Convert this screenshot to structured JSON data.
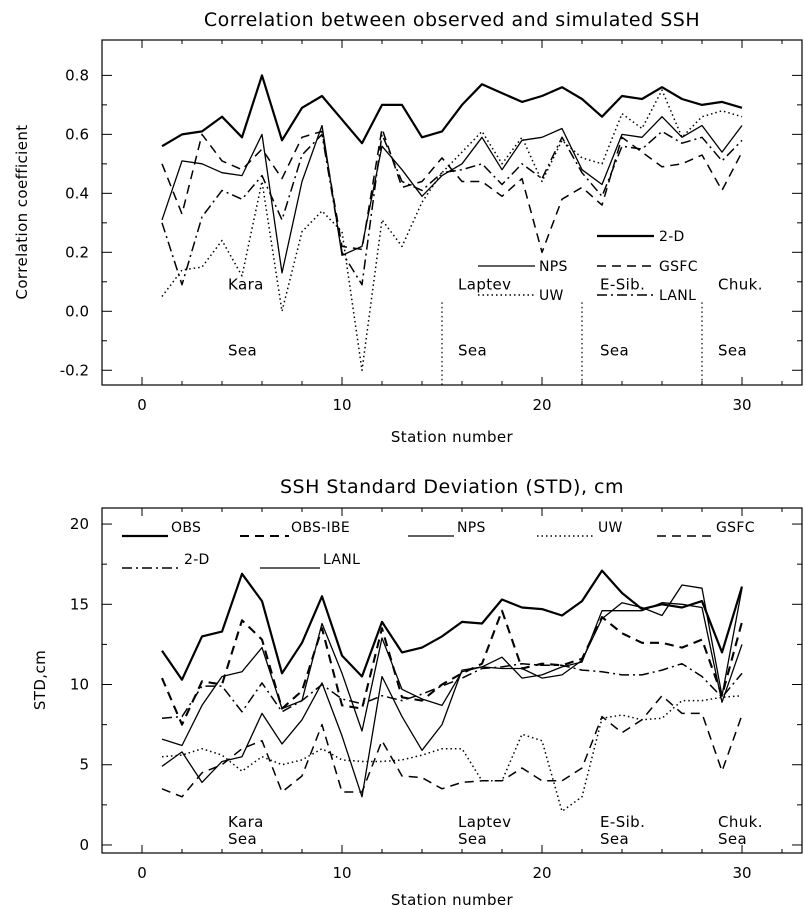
{
  "chart_data": [
    {
      "type": "line",
      "title": "Correlation between observed and simulated SSH",
      "xlabel": "Station number",
      "ylabel": "Correlation coefficient",
      "xlim": [
        -2,
        33
      ],
      "ylim": [
        -0.25,
        0.92
      ],
      "xticks": [
        0,
        10,
        20,
        30
      ],
      "xtick_labels": [
        "0",
        "10",
        "20",
        "30"
      ],
      "yticks": [
        -0.2,
        0.0,
        0.2,
        0.4,
        0.6,
        0.8
      ],
      "ytick_labels": [
        "-0.2",
        "0.0",
        "0.2",
        "0.4",
        "0.6",
        "0.8"
      ],
      "grid": false,
      "legend": "inside-right",
      "x": [
        1,
        2,
        3,
        4,
        5,
        6,
        7,
        8,
        9,
        10,
        11,
        12,
        13,
        14,
        15,
        16,
        17,
        18,
        19,
        20,
        21,
        22,
        23,
        24,
        25,
        26,
        27,
        28,
        29,
        30
      ],
      "series": [
        {
          "name": "2-D",
          "style": "solid-thick",
          "values": [
            0.56,
            0.6,
            0.61,
            0.66,
            0.59,
            0.8,
            0.58,
            0.69,
            0.73,
            0.65,
            0.57,
            0.7,
            0.7,
            0.59,
            0.61,
            0.7,
            0.77,
            0.74,
            0.71,
            0.73,
            0.76,
            0.72,
            0.66,
            0.73,
            0.72,
            0.76,
            0.72,
            0.7,
            0.71,
            0.69
          ]
        },
        {
          "name": "NPS",
          "style": "solid",
          "values": [
            0.31,
            0.51,
            0.5,
            0.47,
            0.46,
            0.6,
            0.13,
            0.44,
            0.63,
            0.19,
            0.22,
            0.56,
            0.48,
            0.39,
            0.46,
            0.5,
            0.59,
            0.48,
            0.58,
            0.59,
            0.62,
            0.48,
            0.43,
            0.6,
            0.59,
            0.66,
            0.59,
            0.63,
            0.54,
            0.63
          ]
        },
        {
          "name": "GSFC",
          "style": "dashed",
          "values": [
            0.5,
            0.33,
            0.6,
            0.51,
            0.48,
            0.55,
            0.45,
            0.59,
            0.61,
            0.22,
            0.21,
            0.62,
            0.42,
            0.44,
            0.52,
            0.44,
            0.44,
            0.39,
            0.45,
            0.2,
            0.38,
            0.42,
            0.36,
            0.59,
            0.54,
            0.49,
            0.5,
            0.53,
            0.41,
            0.54
          ]
        },
        {
          "name": "UW",
          "style": "dotted",
          "values": [
            0.05,
            0.14,
            0.15,
            0.24,
            0.12,
            0.44,
            0.0,
            0.27,
            0.34,
            0.27,
            -0.2,
            0.31,
            0.22,
            0.37,
            0.47,
            0.54,
            0.61,
            0.5,
            0.59,
            0.44,
            0.58,
            0.52,
            0.5,
            0.67,
            0.62,
            0.75,
            0.59,
            0.66,
            0.68,
            0.66
          ]
        },
        {
          "name": "LANL",
          "style": "dashdot",
          "values": [
            0.3,
            0.09,
            0.32,
            0.41,
            0.38,
            0.46,
            0.31,
            0.53,
            0.6,
            0.2,
            0.09,
            0.6,
            0.44,
            0.41,
            0.47,
            0.48,
            0.5,
            0.43,
            0.5,
            0.45,
            0.59,
            0.47,
            0.39,
            0.56,
            0.55,
            0.61,
            0.57,
            0.59,
            0.51,
            0.58
          ]
        }
      ],
      "region_dividers": [
        15,
        22,
        28
      ],
      "regions": [
        {
          "name": "Kara",
          "name2": "Sea",
          "x": 4.3
        },
        {
          "name": "Laptev",
          "name2": "Sea",
          "x": 15.8
        },
        {
          "name": "E-Sib.",
          "name2": "Sea",
          "x": 22.9
        },
        {
          "name": "Chuk.",
          "name2": "Sea",
          "x": 28.8
        }
      ]
    },
    {
      "type": "line",
      "title": "SSH Standard Deviation (STD), cm",
      "xlabel": "Station number",
      "ylabel": "STD,cm",
      "xlim": [
        -2,
        33
      ],
      "ylim": [
        -0.5,
        21
      ],
      "xticks": [
        0,
        10,
        20,
        30
      ],
      "xtick_labels": [
        "0",
        "10",
        "20",
        "30"
      ],
      "yticks": [
        0,
        5,
        10,
        15,
        20
      ],
      "ytick_labels": [
        "0",
        "5",
        "10",
        "15",
        "20"
      ],
      "grid": false,
      "legend": "top",
      "x": [
        1,
        2,
        3,
        4,
        5,
        6,
        7,
        8,
        9,
        10,
        11,
        12,
        13,
        14,
        15,
        16,
        17,
        18,
        19,
        20,
        21,
        22,
        23,
        24,
        25,
        26,
        27,
        28,
        29,
        30
      ],
      "series": [
        {
          "name": "OBS",
          "style": "solid-thick",
          "values": [
            12.1,
            10.3,
            13.0,
            13.3,
            16.9,
            15.2,
            10.7,
            12.6,
            15.5,
            11.8,
            10.5,
            13.9,
            12.0,
            12.3,
            13.0,
            13.9,
            13.8,
            15.3,
            14.8,
            14.7,
            14.3,
            15.2,
            17.1,
            15.7,
            14.7,
            15.0,
            14.8,
            15.2,
            12.0,
            16.1
          ]
        },
        {
          "name": "OBS-IBE",
          "style": "dashed-thick",
          "values": [
            10.4,
            7.5,
            10.2,
            10.0,
            14.0,
            12.8,
            8.5,
            9.6,
            13.5,
            8.7,
            8.5,
            13.5,
            9.2,
            9.0,
            10.0,
            10.7,
            11.3,
            14.6,
            11.0,
            11.3,
            11.2,
            11.6,
            14.2,
            13.2,
            12.6,
            12.6,
            12.3,
            12.8,
            9.3,
            13.9
          ]
        },
        {
          "name": "NPS",
          "style": "solid",
          "values": [
            6.6,
            6.2,
            8.7,
            10.5,
            10.8,
            12.3,
            8.5,
            9.0,
            13.8,
            10.7,
            7.1,
            12.9,
            9.7,
            9.1,
            8.7,
            10.8,
            11.1,
            11.7,
            10.4,
            10.6,
            11.1,
            11.4,
            14.6,
            14.6,
            14.6,
            15.1,
            15.0,
            14.8,
            8.9,
            12.5
          ]
        },
        {
          "name": "UW",
          "style": "dotted",
          "values": [
            5.5,
            5.6,
            6.0,
            5.6,
            4.6,
            5.5,
            5.0,
            5.3,
            6.0,
            5.3,
            5.2,
            5.2,
            5.3,
            5.6,
            6.0,
            6.0,
            4.0,
            4.0,
            6.9,
            6.5,
            2.1,
            3.0,
            7.9,
            8.1,
            7.8,
            7.9,
            9.0,
            9.0,
            9.2,
            9.3
          ]
        },
        {
          "name": "GSFC",
          "style": "dashed",
          "values": [
            3.5,
            3.0,
            4.5,
            5.0,
            6.0,
            6.5,
            3.3,
            4.3,
            7.5,
            3.3,
            3.3,
            6.5,
            4.3,
            4.2,
            3.5,
            3.9,
            4.0,
            4.0,
            4.8,
            4.0,
            4.0,
            4.8,
            8.0,
            7.0,
            7.8,
            9.3,
            8.2,
            8.2,
            4.6,
            8.1
          ]
        },
        {
          "name": "2-D",
          "style": "dashdot",
          "values": [
            7.9,
            8.0,
            9.9,
            9.9,
            8.3,
            10.1,
            8.3,
            9.0,
            10.0,
            9.1,
            8.8,
            9.3,
            9.0,
            9.4,
            9.9,
            10.4,
            11.0,
            11.1,
            11.3,
            11.2,
            11.2,
            10.9,
            10.8,
            10.6,
            10.6,
            10.9,
            11.3,
            10.5,
            9.2,
            10.7
          ]
        },
        {
          "name": "LANL",
          "style": "solid",
          "values": [
            4.9,
            5.8,
            3.9,
            5.2,
            5.5,
            8.2,
            6.3,
            7.8,
            10.1,
            6.8,
            3.0,
            10.5,
            8.0,
            5.9,
            7.5,
            10.9,
            11.1,
            11.0,
            11.0,
            10.4,
            10.6,
            11.5,
            14.1,
            15.1,
            14.8,
            14.3,
            16.2,
            16.0,
            9.3,
            16.0
          ]
        }
      ],
      "region_dividers": [],
      "regions": [
        {
          "name": "Kara",
          "name2": "Sea",
          "x": 4.3
        },
        {
          "name": "Laptev",
          "name2": "Sea",
          "x": 15.8
        },
        {
          "name": "E-Sib.",
          "name2": "Sea",
          "x": 22.9
        },
        {
          "name": "Chuk.",
          "name2": "Sea",
          "x": 28.8
        }
      ]
    }
  ]
}
